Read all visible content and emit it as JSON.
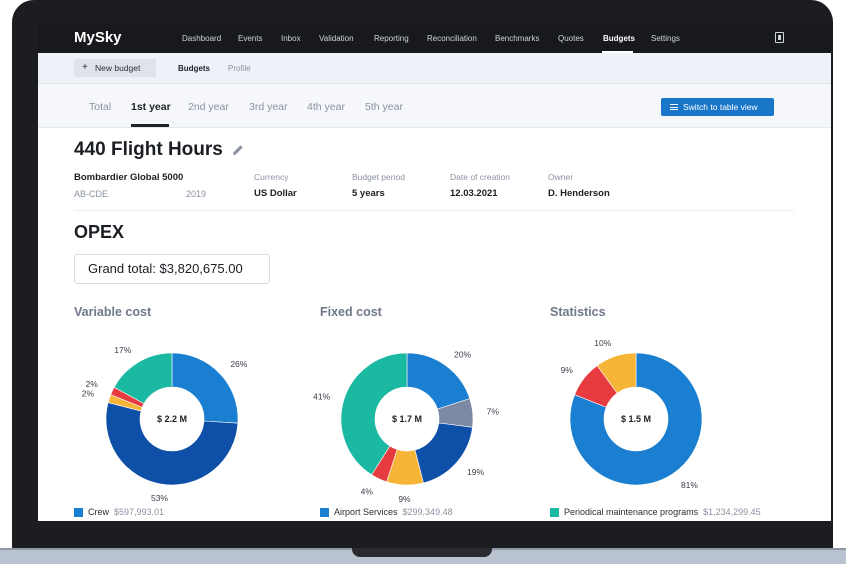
{
  "app": {
    "logo": "MySky"
  },
  "nav": {
    "items": [
      "Dashboard",
      "Events",
      "Inbox",
      "Validation",
      "Reporting",
      "Reconciliation",
      "Benchmarks",
      "Quotes",
      "Budgets",
      "Settings"
    ],
    "active": "Budgets",
    "exit_icon": "exit-icon"
  },
  "subbar": {
    "new_budget_label": "New budget",
    "tabs": [
      "Budgets",
      "Profile"
    ],
    "active_tab": "Budgets"
  },
  "years": {
    "tabs": [
      "Total",
      "1st year",
      "2nd year",
      "3rd year",
      "4th year",
      "5th year"
    ],
    "active": "1st year",
    "switch_label": "Switch to table view"
  },
  "budget": {
    "title": "440 Flight Hours",
    "aircraft": "Bombardier Global 5000",
    "registration": "AB-CDE",
    "year": "2019",
    "currency_label": "Currency",
    "currency": "US Dollar",
    "period_label": "Budget period",
    "period": "5 years",
    "creation_label": "Date of creation",
    "creation": "12.03.2021",
    "owner_label": "Owner",
    "owner": "D. Henderson"
  },
  "opex": {
    "section_title": "OPEX",
    "grand_total": "Grand total: $3,820,675.00"
  },
  "chart_data": [
    {
      "type": "pie",
      "title": "Variable cost",
      "center_label": "$ 2.2 M",
      "slices": [
        {
          "label": "26%",
          "value": 26,
          "color": "#1a7fd0"
        },
        {
          "label": "53%",
          "value": 53,
          "color": "#0e4fa8"
        },
        {
          "label": "2%",
          "value": 2,
          "color": "#f7b538"
        },
        {
          "label": "2%",
          "value": 2,
          "color": "#e83b3f"
        },
        {
          "label": "17%",
          "value": 17,
          "color": "#1bb8a2"
        }
      ],
      "legend": {
        "name": "Crew",
        "amount": "$597,993.01",
        "color": "#1a7fd0"
      }
    },
    {
      "type": "pie",
      "title": "Fixed cost",
      "center_label": "$ 1.7 M",
      "slices": [
        {
          "label": "20%",
          "value": 20,
          "color": "#1a7fd0"
        },
        {
          "label": "7%",
          "value": 7,
          "color": "#7d8aa3"
        },
        {
          "label": "19%",
          "value": 19,
          "color": "#0e4fa8"
        },
        {
          "label": "9%",
          "value": 9,
          "color": "#f7b538"
        },
        {
          "label": "4%",
          "value": 4,
          "color": "#e83b3f"
        },
        {
          "label": "41%",
          "value": 41,
          "color": "#1bb8a2"
        }
      ],
      "legend": {
        "name": "Airport Services",
        "amount": "$299,349.48",
        "color": "#1a7fd0"
      }
    },
    {
      "type": "pie",
      "title": "Statistics",
      "center_label": "$ 1.5 M",
      "slices": [
        {
          "label": "81%",
          "value": 81,
          "color": "#1a7fd0"
        },
        {
          "label": "9%",
          "value": 9,
          "color": "#e83b3f"
        },
        {
          "label": "10%",
          "value": 10,
          "color": "#f7b538"
        }
      ],
      "legend": {
        "name": "Periodical maintenance programs",
        "amount": "$1,234,299.45",
        "color": "#1bb8a2"
      }
    }
  ]
}
